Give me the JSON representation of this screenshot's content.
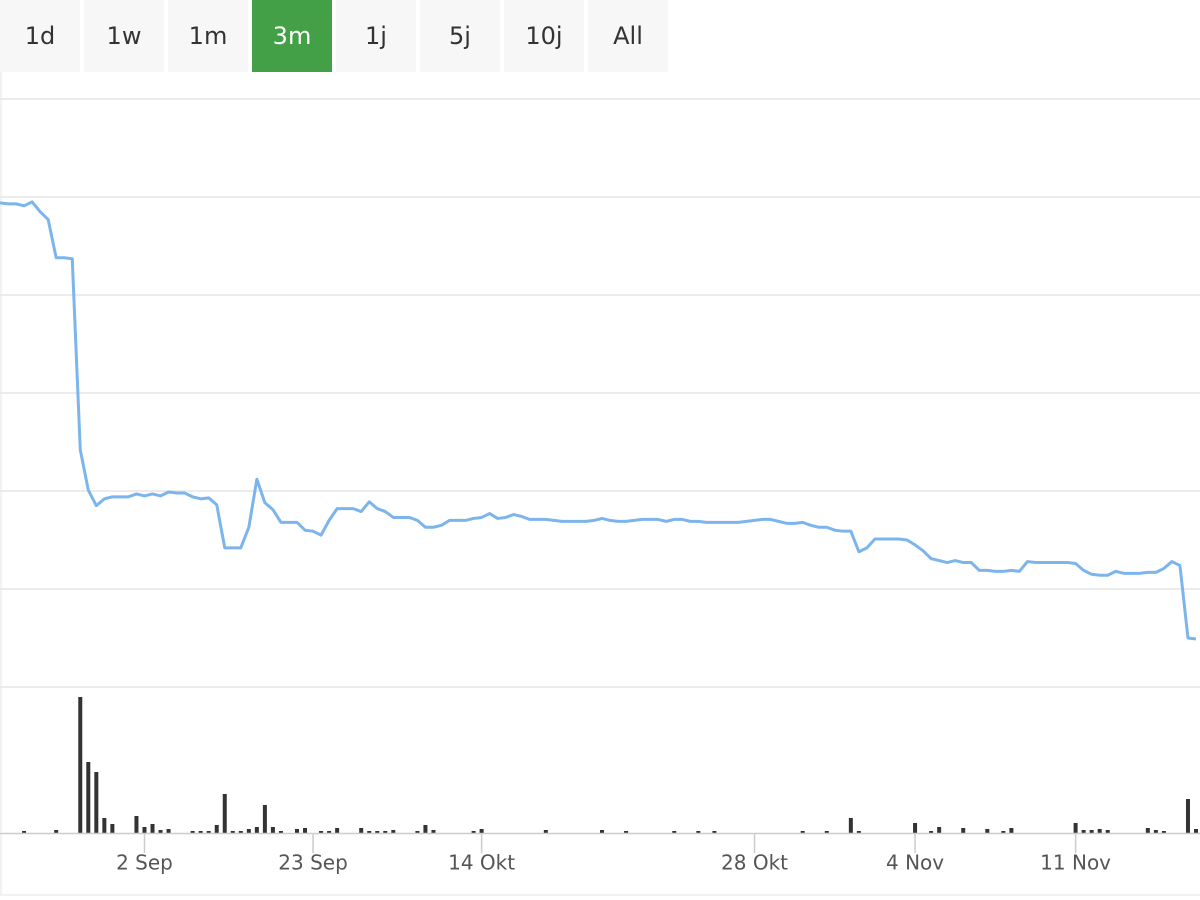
{
  "range_selector": {
    "buttons": [
      "1d",
      "1w",
      "1m",
      "3m",
      "1j",
      "5j",
      "10j",
      "All"
    ],
    "selected": 3,
    "selected_color": "#43a047"
  },
  "chart_data": {
    "type": "line",
    "categories": [
      null,
      null,
      null,
      null,
      null,
      null,
      null,
      null,
      null,
      null,
      null,
      null,
      null,
      null,
      null,
      null,
      null,
      null,
      "2 Sep",
      null,
      null,
      null,
      null,
      null,
      null,
      null,
      null,
      null,
      null,
      null,
      null,
      null,
      null,
      null,
      null,
      null,
      null,
      null,
      null,
      "23 Sep",
      null,
      null,
      null,
      null,
      null,
      null,
      null,
      null,
      null,
      null,
      null,
      null,
      null,
      null,
      null,
      null,
      null,
      null,
      null,
      null,
      "14 Okt",
      null,
      null,
      null,
      null,
      null,
      null,
      null,
      null,
      null,
      null,
      null,
      null,
      null,
      null,
      null,
      null,
      null,
      null,
      null,
      null,
      null,
      null,
      null,
      null,
      null,
      null,
      null,
      null,
      null,
      null,
      null,
      null,
      null,
      "28 Okt",
      null,
      null,
      null,
      null,
      null,
      null,
      null,
      null,
      null,
      null,
      null,
      null,
      null,
      null,
      null,
      null,
      null,
      null,
      null,
      "4 Nov",
      null,
      null,
      null,
      null,
      null,
      null,
      null,
      null,
      null,
      null,
      null,
      null,
      null,
      null,
      null,
      null,
      null,
      null,
      null,
      "11 Nov",
      null,
      null,
      null,
      null,
      null,
      null,
      null,
      null,
      null,
      null,
      null,
      null,
      null,
      null,
      null
    ],
    "values": [
      4.94,
      4.93,
      4.93,
      4.91,
      4.95,
      4.85,
      4.77,
      4.38,
      4.38,
      4.37,
      2.42,
      2.01,
      1.85,
      1.92,
      1.94,
      1.94,
      1.94,
      1.97,
      1.95,
      1.97,
      1.95,
      1.99,
      1.98,
      1.98,
      1.94,
      1.92,
      1.93,
      1.86,
      1.42,
      1.42,
      1.42,
      1.63,
      2.12,
      1.88,
      1.81,
      1.68,
      1.68,
      1.68,
      1.6,
      1.59,
      1.55,
      1.7,
      1.82,
      1.82,
      1.82,
      1.79,
      1.89,
      1.82,
      1.79,
      1.73,
      1.73,
      1.73,
      1.7,
      1.63,
      1.63,
      1.65,
      1.7,
      1.7,
      1.7,
      1.72,
      1.73,
      1.77,
      1.72,
      1.73,
      1.76,
      1.74,
      1.71,
      1.71,
      1.71,
      1.7,
      1.69,
      1.69,
      1.69,
      1.69,
      1.7,
      1.72,
      1.7,
      1.69,
      1.69,
      1.7,
      1.71,
      1.71,
      1.71,
      1.69,
      1.71,
      1.71,
      1.69,
      1.69,
      1.68,
      1.68,
      1.68,
      1.68,
      1.68,
      1.69,
      1.7,
      1.71,
      1.71,
      1.69,
      1.67,
      1.67,
      1.68,
      1.65,
      1.63,
      1.63,
      1.6,
      1.59,
      1.59,
      1.38,
      1.42,
      1.51,
      1.51,
      1.51,
      1.51,
      1.5,
      1.45,
      1.39,
      1.31,
      1.29,
      1.27,
      1.29,
      1.27,
      1.27,
      1.19,
      1.19,
      1.18,
      1.18,
      1.19,
      1.18,
      1.28,
      1.27,
      1.27,
      1.27,
      1.27,
      1.27,
      1.26,
      1.19,
      1.15,
      1.14,
      1.14,
      1.18,
      1.16,
      1.16,
      1.16,
      1.17,
      1.17,
      1.21,
      1.28,
      1.24,
      0.5,
      0.49
    ],
    "color": "#7cb5ec",
    "ylim": [
      0,
      6
    ],
    "ygrid": [
      0,
      1,
      2,
      3,
      4,
      5,
      6
    ],
    "grid": true,
    "volume": {
      "type": "bar",
      "color": "#333333",
      "ylim": [
        0,
        140
      ],
      "values": [
        0,
        0,
        0,
        2,
        0,
        0,
        0,
        3,
        0,
        0,
        136,
        71,
        61,
        15,
        9,
        0,
        0,
        17,
        6,
        9,
        3,
        4,
        0,
        0,
        2,
        2,
        2,
        8,
        39,
        2,
        2,
        4,
        6,
        28,
        6,
        2,
        0,
        4,
        5,
        0,
        2,
        2,
        5,
        0,
        0,
        5,
        2,
        2,
        2,
        3,
        0,
        0,
        2,
        8,
        3,
        0,
        0,
        0,
        0,
        2,
        4,
        0,
        0,
        0,
        0,
        0,
        0,
        0,
        3,
        0,
        0,
        0,
        0,
        0,
        0,
        3,
        0,
        0,
        2,
        0,
        0,
        0,
        0,
        0,
        2,
        0,
        0,
        2,
        0,
        2,
        0,
        0,
        0,
        0,
        0,
        0,
        0,
        0,
        0,
        0,
        2,
        0,
        0,
        2,
        0,
        0,
        15,
        2,
        0,
        0,
        0,
        0,
        0,
        0,
        10,
        0,
        2,
        6,
        0,
        0,
        5,
        0,
        0,
        4,
        0,
        2,
        5,
        0,
        0,
        0,
        0,
        0,
        0,
        0,
        10,
        3,
        3,
        4,
        3,
        0,
        0,
        0,
        0,
        5,
        3,
        2,
        0,
        0,
        34,
        4
      ]
    }
  }
}
